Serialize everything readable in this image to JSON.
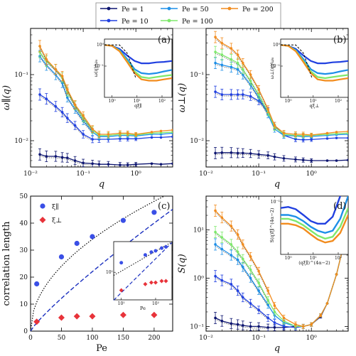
{
  "colors": {
    "pe1": "#0d1570",
    "pe10": "#2140e0",
    "pe50": "#1d8fe8",
    "pe100": "#7ee86c",
    "pe200": "#f28c1e",
    "xi_par": "#3a4fe6",
    "xi_perp": "#e8333a",
    "fit": "#1a2fbf"
  },
  "legend": {
    "items": [
      {
        "label": "Pe = 1",
        "key": "pe1"
      },
      {
        "label": "Pe = 50",
        "key": "pe50"
      },
      {
        "label": "Pe = 200",
        "key": "pe200"
      },
      {
        "label": "Pe = 10",
        "key": "pe10"
      },
      {
        "label": "Pe = 100",
        "key": "pe100"
      }
    ]
  },
  "chart_data": [
    {
      "panel": "a",
      "type": "line",
      "xscale": "log",
      "yscale": "log",
      "xlabel": "q",
      "ylabel": "ω∥(q)",
      "xlim": [
        0.01,
        5
      ],
      "ylim": [
        0.004,
        0.5
      ],
      "xticks": [
        "10⁻²",
        "10⁻¹",
        "10⁰"
      ],
      "yticks": [
        "10⁻²",
        "10⁻¹"
      ],
      "series": [
        {
          "name": "Pe = 1",
          "key": "pe1",
          "x": [
            0.015,
            0.02,
            0.03,
            0.04,
            0.05,
            0.07,
            0.1,
            0.15,
            0.2,
            0.3,
            0.5,
            0.7,
            1,
            2,
            3,
            5
          ],
          "y": [
            0.0062,
            0.0058,
            0.0058,
            0.0056,
            0.0055,
            0.005,
            0.0046,
            0.0045,
            0.0044,
            0.0044,
            0.0043,
            0.0043,
            0.0044,
            0.0045,
            0.0044,
            0.0045
          ]
        },
        {
          "name": "Pe = 10",
          "key": "pe10",
          "x": [
            0.015,
            0.02,
            0.03,
            0.04,
            0.05,
            0.07,
            0.1,
            0.15,
            0.2,
            0.3,
            0.5,
            0.7,
            1,
            2,
            3,
            5
          ],
          "y": [
            0.05,
            0.043,
            0.033,
            0.027,
            0.022,
            0.017,
            0.0125,
            0.0105,
            0.0105,
            0.0105,
            0.0107,
            0.0107,
            0.0107,
            0.0112,
            0.0112,
            0.0115
          ]
        },
        {
          "name": "Pe = 50",
          "key": "pe50",
          "x": [
            0.015,
            0.02,
            0.03,
            0.04,
            0.05,
            0.07,
            0.1,
            0.15,
            0.2,
            0.3,
            0.5,
            0.7,
            1,
            2,
            3,
            5
          ],
          "y": [
            0.19,
            0.14,
            0.1,
            0.075,
            0.045,
            0.03,
            0.02,
            0.0135,
            0.0115,
            0.0115,
            0.012,
            0.012,
            0.0118,
            0.0125,
            0.0125,
            0.013
          ]
        },
        {
          "name": "Pe = 100",
          "key": "pe100",
          "x": [
            0.015,
            0.02,
            0.03,
            0.04,
            0.05,
            0.07,
            0.1,
            0.15,
            0.2,
            0.3,
            0.5,
            0.7,
            1,
            2,
            3,
            5
          ],
          "y": [
            0.22,
            0.16,
            0.12,
            0.09,
            0.055,
            0.034,
            0.022,
            0.0145,
            0.012,
            0.012,
            0.0125,
            0.0125,
            0.0122,
            0.013,
            0.0132,
            0.0135
          ]
        },
        {
          "name": "Pe = 200",
          "key": "pe200",
          "x": [
            0.015,
            0.02,
            0.03,
            0.04,
            0.05,
            0.07,
            0.1,
            0.15,
            0.2,
            0.3,
            0.5,
            0.7,
            1,
            2,
            3,
            5
          ],
          "y": [
            0.27,
            0.17,
            0.12,
            0.095,
            0.06,
            0.035,
            0.024,
            0.015,
            0.0125,
            0.0125,
            0.013,
            0.013,
            0.0125,
            0.0135,
            0.014,
            0.0145
          ]
        }
      ],
      "inset": {
        "xlabel": "qξ∥",
        "ylabel": "ω(q)/ω₀",
        "xticks": [
          "10⁰",
          "10¹",
          "10²"
        ],
        "yticks": [
          "10⁰",
          "10⁻¹"
        ]
      }
    },
    {
      "panel": "b",
      "type": "line",
      "xscale": "log",
      "yscale": "log",
      "xlabel": "q",
      "ylabel": "ω⊥(q)",
      "xlim": [
        0.01,
        5
      ],
      "ylim": [
        0.004,
        0.5
      ],
      "xticks": [
        "10⁻²",
        "10⁻¹",
        "10⁰"
      ],
      "yticks": [
        "10⁻²",
        "10⁻¹"
      ],
      "series": [
        {
          "name": "Pe = 1",
          "key": "pe1",
          "x": [
            0.015,
            0.02,
            0.03,
            0.04,
            0.05,
            0.07,
            0.1,
            0.15,
            0.2,
            0.3,
            0.5,
            0.7,
            1,
            2,
            3,
            5
          ],
          "y": [
            0.0065,
            0.0066,
            0.0066,
            0.0065,
            0.0065,
            0.0064,
            0.0062,
            0.006,
            0.0057,
            0.0054,
            0.0052,
            0.0051,
            0.005,
            0.005,
            0.005,
            0.0051
          ]
        },
        {
          "name": "Pe = 10",
          "key": "pe10",
          "x": [
            0.015,
            0.02,
            0.03,
            0.04,
            0.05,
            0.07,
            0.1,
            0.15,
            0.2,
            0.3,
            0.5,
            0.7,
            1,
            2,
            3,
            5
          ],
          "y": [
            0.055,
            0.05,
            0.05,
            0.05,
            0.05,
            0.047,
            0.04,
            0.028,
            0.017,
            0.012,
            0.0105,
            0.0103,
            0.0104,
            0.0108,
            0.011,
            0.011
          ]
        },
        {
          "name": "Pe = 50",
          "key": "pe50",
          "x": [
            0.015,
            0.02,
            0.03,
            0.04,
            0.05,
            0.07,
            0.1,
            0.15,
            0.2,
            0.3,
            0.5,
            0.7,
            1,
            2,
            3,
            5
          ],
          "y": [
            0.15,
            0.14,
            0.13,
            0.12,
            0.1,
            0.07,
            0.045,
            0.025,
            0.015,
            0.012,
            0.0118,
            0.0115,
            0.0116,
            0.012,
            0.0123,
            0.0125
          ]
        },
        {
          "name": "Pe = 100",
          "key": "pe100",
          "x": [
            0.015,
            0.02,
            0.03,
            0.04,
            0.05,
            0.07,
            0.1,
            0.15,
            0.2,
            0.3,
            0.5,
            0.7,
            1,
            2,
            3,
            5
          ],
          "y": [
            0.22,
            0.2,
            0.17,
            0.15,
            0.12,
            0.08,
            0.05,
            0.027,
            0.016,
            0.0125,
            0.012,
            0.012,
            0.012,
            0.0125,
            0.0128,
            0.013
          ]
        },
        {
          "name": "Pe = 200",
          "key": "pe200",
          "x": [
            0.015,
            0.02,
            0.03,
            0.04,
            0.05,
            0.07,
            0.1,
            0.15,
            0.2,
            0.3,
            0.5,
            0.7,
            1,
            2,
            3,
            5
          ],
          "y": [
            0.37,
            0.3,
            0.25,
            0.2,
            0.15,
            0.1,
            0.06,
            0.03,
            0.017,
            0.013,
            0.0125,
            0.0125,
            0.0122,
            0.013,
            0.0135,
            0.0138
          ]
        }
      ],
      "inset": {
        "xlabel": "qξ⊥",
        "ylabel": "ω⊥(q)/ω₀",
        "xticks": [
          "10⁰",
          "10¹",
          "10²"
        ],
        "yticks": [
          "10⁰",
          "10⁻¹"
        ]
      }
    },
    {
      "panel": "c",
      "type": "scatter",
      "xscale": "linear",
      "yscale": "linear",
      "xlabel": "Pe",
      "ylabel": "correlation length",
      "xlim": [
        0,
        230
      ],
      "ylim": [
        0,
        50
      ],
      "xticks": [
        "0",
        "50",
        "100",
        "150",
        "200"
      ],
      "yticks": [
        "0",
        "10",
        "20",
        "30",
        "40",
        "50"
      ],
      "series": [
        {
          "name": "ξ∥",
          "key": "xi_par",
          "marker": "circle",
          "x": [
            10,
            50,
            75,
            100,
            150,
            200
          ],
          "y": [
            17.5,
            27.5,
            32.5,
            35,
            41,
            44
          ]
        },
        {
          "name": "ξ⊥",
          "key": "xi_perp",
          "marker": "diamond",
          "x": [
            10,
            50,
            75,
            100,
            150,
            200
          ],
          "y": [
            3.5,
            5,
            5.5,
            5.5,
            6,
            6
          ]
        }
      ],
      "inset": {
        "xlabel": "Pe",
        "xticks": [
          "10¹",
          "10²"
        ],
        "yticks": [
          "10¹"
        ]
      }
    },
    {
      "panel": "d",
      "type": "line",
      "xscale": "log",
      "yscale": "log",
      "xlabel": "q",
      "ylabel": "S(q)",
      "xlim": [
        0.01,
        5
      ],
      "ylim": [
        0.08,
        50
      ],
      "xticks": [
        "10⁻²",
        "10⁻¹",
        "10⁰"
      ],
      "yticks": [
        "10⁻¹",
        "10⁰",
        "10¹"
      ],
      "series": [
        {
          "name": "Pe = 1",
          "key": "pe1",
          "x": [
            0.015,
            0.02,
            0.03,
            0.04,
            0.05,
            0.07,
            0.1,
            0.15,
            0.2,
            0.3,
            0.5,
            0.7,
            1,
            1.5,
            2,
            3,
            5
          ],
          "y": [
            0.15,
            0.13,
            0.115,
            0.11,
            0.105,
            0.1,
            0.1,
            0.095,
            0.095,
            0.095,
            0.1,
            0.1,
            0.11,
            0.16,
            0.3,
            1.2,
            12
          ]
        },
        {
          "name": "Pe = 10",
          "key": "pe10",
          "x": [
            0.015,
            0.02,
            0.03,
            0.04,
            0.05,
            0.07,
            0.1,
            0.15,
            0.2,
            0.3,
            0.5,
            0.7,
            1,
            1.5,
            2,
            3,
            5
          ],
          "y": [
            1.1,
            0.9,
            0.75,
            0.55,
            0.4,
            0.3,
            0.22,
            0.15,
            0.12,
            0.1,
            0.095,
            0.1,
            0.11,
            0.17,
            0.3,
            1.2,
            12
          ]
        },
        {
          "name": "Pe = 50",
          "key": "pe50",
          "x": [
            0.015,
            0.02,
            0.03,
            0.04,
            0.05,
            0.07,
            0.1,
            0.15,
            0.2,
            0.3,
            0.5,
            0.7,
            1,
            1.5,
            2,
            3,
            5
          ],
          "y": [
            5,
            4,
            3,
            2.4,
            1.7,
            1,
            0.55,
            0.28,
            0.17,
            0.12,
            0.1,
            0.1,
            0.11,
            0.17,
            0.3,
            1.2,
            12
          ]
        },
        {
          "name": "Pe = 100",
          "key": "pe100",
          "x": [
            0.015,
            0.02,
            0.03,
            0.04,
            0.05,
            0.07,
            0.1,
            0.15,
            0.2,
            0.3,
            0.5,
            0.7,
            1,
            1.5,
            2,
            3,
            5
          ],
          "y": [
            9,
            7,
            5,
            3.5,
            2.5,
            1.5,
            0.8,
            0.35,
            0.2,
            0.13,
            0.1,
            0.1,
            0.11,
            0.17,
            0.3,
            1.2,
            12
          ]
        },
        {
          "name": "Pe = 200",
          "key": "pe200",
          "x": [
            0.015,
            0.02,
            0.03,
            0.04,
            0.05,
            0.07,
            0.1,
            0.15,
            0.2,
            0.3,
            0.5,
            0.7,
            1,
            1.5,
            2,
            3,
            5
          ],
          "y": [
            25,
            18,
            12,
            8,
            5,
            2.8,
            1.4,
            0.55,
            0.27,
            0.15,
            0.11,
            0.1,
            0.11,
            0.17,
            0.3,
            1.2,
            12
          ]
        }
      ],
      "inset": {
        "xlabel": "(qξ∥)^(4α−2)",
        "ylabel": "S(q)ξ∥^(4α−2)",
        "xticks": [
          "10⁰",
          "10¹",
          "10²"
        ],
        "yticks": [
          "10⁻¹"
        ]
      }
    }
  ]
}
